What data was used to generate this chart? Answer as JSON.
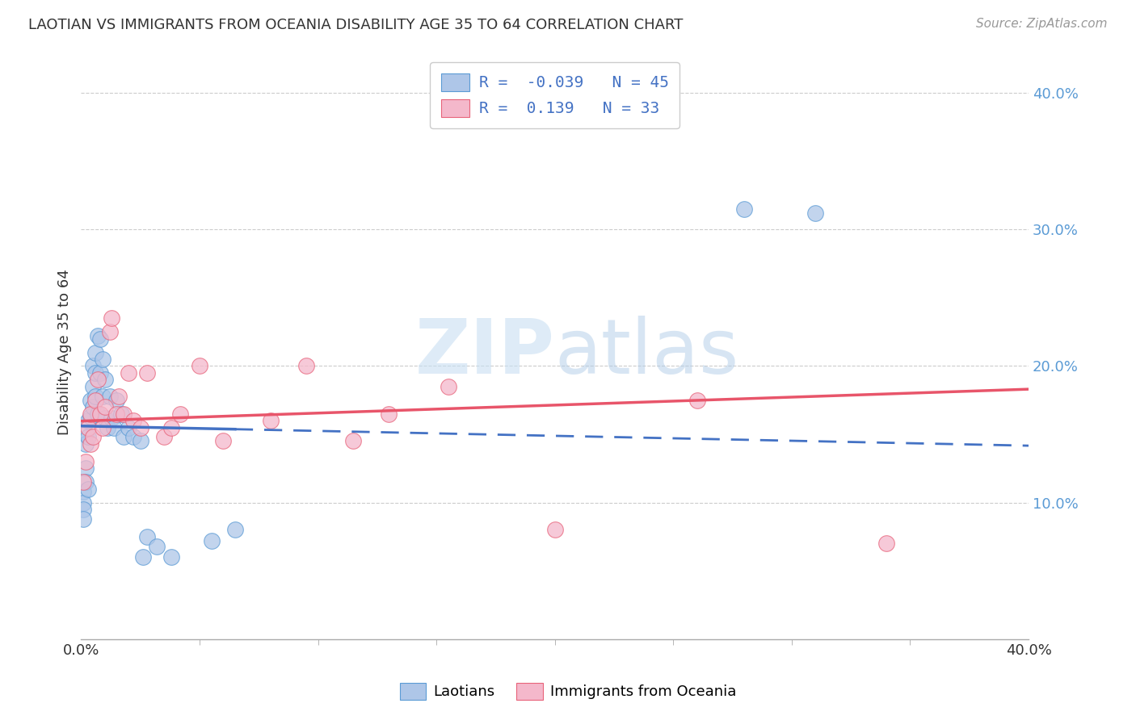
{
  "title": "LAOTIAN VS IMMIGRANTS FROM OCEANIA DISABILITY AGE 35 TO 64 CORRELATION CHART",
  "source": "Source: ZipAtlas.com",
  "ylabel": "Disability Age 35 to 64",
  "ytick_labels": [
    "10.0%",
    "20.0%",
    "30.0%",
    "40.0%"
  ],
  "ytick_values": [
    0.1,
    0.2,
    0.3,
    0.4
  ],
  "xlim": [
    0.0,
    0.4
  ],
  "ylim": [
    0.0,
    0.42
  ],
  "laotian_color": "#aec6e8",
  "laotian_edge": "#5b9bd5",
  "oceania_color": "#f4b8cb",
  "oceania_edge": "#e8637a",
  "trendline_laotian_color": "#4472c4",
  "trendline_oceania_color": "#e8556a",
  "watermark_color": "#daeaf7",
  "laotian_x": [
    0.001,
    0.001,
    0.001,
    0.001,
    0.002,
    0.002,
    0.002,
    0.002,
    0.003,
    0.003,
    0.003,
    0.004,
    0.004,
    0.005,
    0.005,
    0.005,
    0.006,
    0.006,
    0.006,
    0.007,
    0.007,
    0.008,
    0.008,
    0.009,
    0.009,
    0.01,
    0.01,
    0.011,
    0.012,
    0.013,
    0.014,
    0.015,
    0.017,
    0.018,
    0.02,
    0.022,
    0.025,
    0.026,
    0.028,
    0.032,
    0.038,
    0.055,
    0.065,
    0.28,
    0.31
  ],
  "laotian_y": [
    0.108,
    0.1,
    0.095,
    0.088,
    0.15,
    0.143,
    0.125,
    0.115,
    0.16,
    0.148,
    0.11,
    0.175,
    0.163,
    0.2,
    0.185,
    0.17,
    0.21,
    0.195,
    0.178,
    0.222,
    0.165,
    0.22,
    0.195,
    0.205,
    0.178,
    0.19,
    0.162,
    0.155,
    0.178,
    0.162,
    0.155,
    0.175,
    0.165,
    0.148,
    0.155,
    0.148,
    0.145,
    0.06,
    0.075,
    0.068,
    0.06,
    0.072,
    0.08,
    0.315,
    0.312
  ],
  "oceania_x": [
    0.001,
    0.002,
    0.003,
    0.004,
    0.004,
    0.005,
    0.006,
    0.007,
    0.008,
    0.009,
    0.01,
    0.012,
    0.013,
    0.015,
    0.016,
    0.018,
    0.02,
    0.022,
    0.025,
    0.028,
    0.035,
    0.038,
    0.042,
    0.05,
    0.06,
    0.08,
    0.095,
    0.115,
    0.13,
    0.155,
    0.2,
    0.26,
    0.34
  ],
  "oceania_y": [
    0.115,
    0.13,
    0.155,
    0.143,
    0.165,
    0.148,
    0.175,
    0.19,
    0.165,
    0.155,
    0.17,
    0.225,
    0.235,
    0.165,
    0.178,
    0.165,
    0.195,
    0.16,
    0.155,
    0.195,
    0.148,
    0.155,
    0.165,
    0.2,
    0.145,
    0.16,
    0.2,
    0.145,
    0.165,
    0.185,
    0.08,
    0.175,
    0.07
  ],
  "r_laotian": -0.039,
  "n_laotian": 45,
  "r_oceania": 0.139,
  "n_oceania": 33
}
